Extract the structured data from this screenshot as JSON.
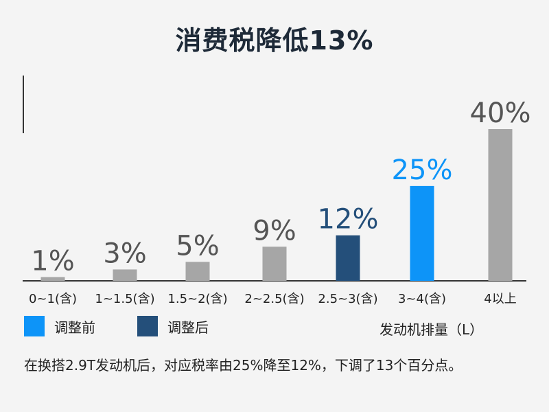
{
  "title": "消费税降低13%",
  "legend": [
    {
      "label": "调整前",
      "color": "#0d94f8"
    },
    {
      "label": "调整后",
      "color": "#244f7a"
    }
  ],
  "axis_title": "发动机排量（L）",
  "caption": "在换搭2.9T发动机后，对应税率由25%降至12%，下调了13个百分点。",
  "colors": {
    "default": "#a6a6a6",
    "before": "#0d94f8",
    "after": "#244f7a"
  },
  "chart_data": {
    "type": "bar",
    "title": "消费税降低13%",
    "xlabel": "发动机排量（L）",
    "ylabel": "",
    "categories": [
      "0~1(含)",
      "1~1.5(含)",
      "1.5~2(含)",
      "2~2.5(含)",
      "2.5~3(含)",
      "3~4(含)",
      "4以上"
    ],
    "values": [
      1,
      3,
      5,
      9,
      12,
      25,
      40
    ],
    "labels": [
      "1%",
      "3%",
      "5%",
      "9%",
      "12%",
      "25%",
      "40%"
    ],
    "highlight": {
      "3~4(含)": "before",
      "2.5~3(含)": "after"
    },
    "ylim": [
      0,
      40
    ],
    "grid": false
  }
}
